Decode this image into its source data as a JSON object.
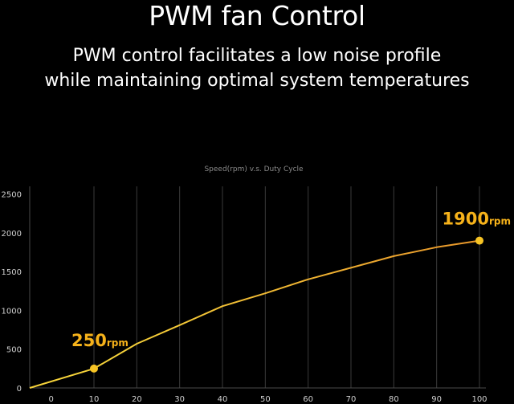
{
  "header": {
    "title": "PWM fan Control",
    "subtitle_line1": "PWM control facilitates a low noise profile",
    "subtitle_line2": "while maintaining optimal system temperatures"
  },
  "colors": {
    "background": "#000000",
    "grid": "#3a3a3a",
    "line": "#e8962a",
    "line_start": "#f6d33a",
    "marker": "#f6c324",
    "callout": "#f6b21a"
  },
  "chart_data": {
    "type": "line",
    "title": "Speed(rpm)  v.s.  Duty Cycle",
    "xlabel": "",
    "ylabel": "",
    "xlim": [
      -5,
      100
    ],
    "ylim": [
      0,
      2600
    ],
    "x_ticks": [
      0,
      10,
      20,
      30,
      40,
      50,
      60,
      70,
      80,
      90,
      100
    ],
    "y_ticks": [
      0,
      500,
      1000,
      1500,
      2000,
      2500
    ],
    "grid": "vertical",
    "series": [
      {
        "x": [
          -5,
          10,
          20,
          30,
          40,
          50,
          60,
          70,
          80,
          90,
          100
        ],
        "y": [
          0,
          250,
          570,
          810,
          1055,
          1220,
          1400,
          1550,
          1700,
          1815,
          1900
        ]
      }
    ],
    "markers": [
      {
        "x": 10,
        "y": 250,
        "value": "250",
        "unit": "rpm"
      },
      {
        "x": 100,
        "y": 1900,
        "value": "1900",
        "unit": "rpm"
      }
    ]
  }
}
